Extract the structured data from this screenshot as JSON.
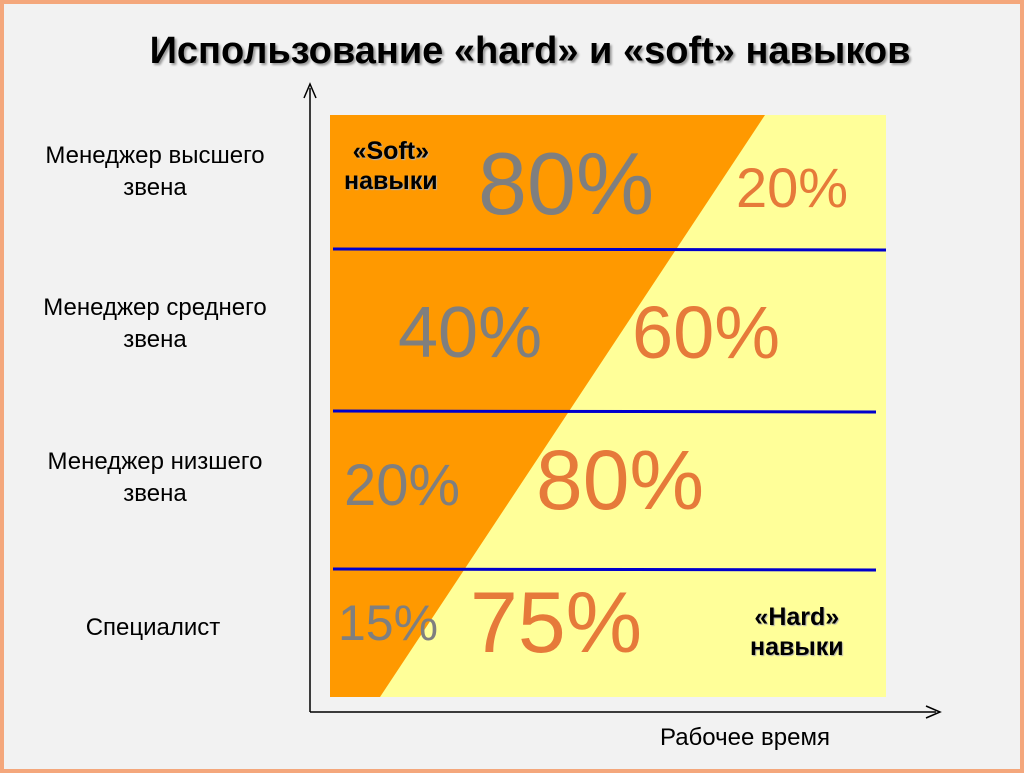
{
  "title": "Использование «hard» и «soft» навыков",
  "x_axis_label": "Рабочее время",
  "rows": [
    {
      "label_line1": "Менеджер высшего",
      "label_line2": "звена",
      "soft_pct": "80%",
      "hard_pct": "20%"
    },
    {
      "label_line1": "Менеджер среднего",
      "label_line2": "звена",
      "soft_pct": "40%",
      "hard_pct": "60%"
    },
    {
      "label_line1": "Менеджер низшего",
      "label_line2": "звена",
      "soft_pct": "20%",
      "hard_pct": "80%"
    },
    {
      "label_line1": "Специалист",
      "label_line2": "",
      "soft_pct": "15%",
      "hard_pct": "75%"
    }
  ],
  "soft_label": {
    "line1": "«Soft»",
    "line2": "навыки"
  },
  "hard_label": {
    "line1": "«Hard»",
    "line2": "навыки"
  },
  "colors": {
    "soft_area": "#ff9900",
    "hard_area": "#ffff99",
    "divider": "#0000cc",
    "soft_text": "#7f7f7f",
    "hard_text": "#e67a3a",
    "border": "#f4a77c"
  }
}
